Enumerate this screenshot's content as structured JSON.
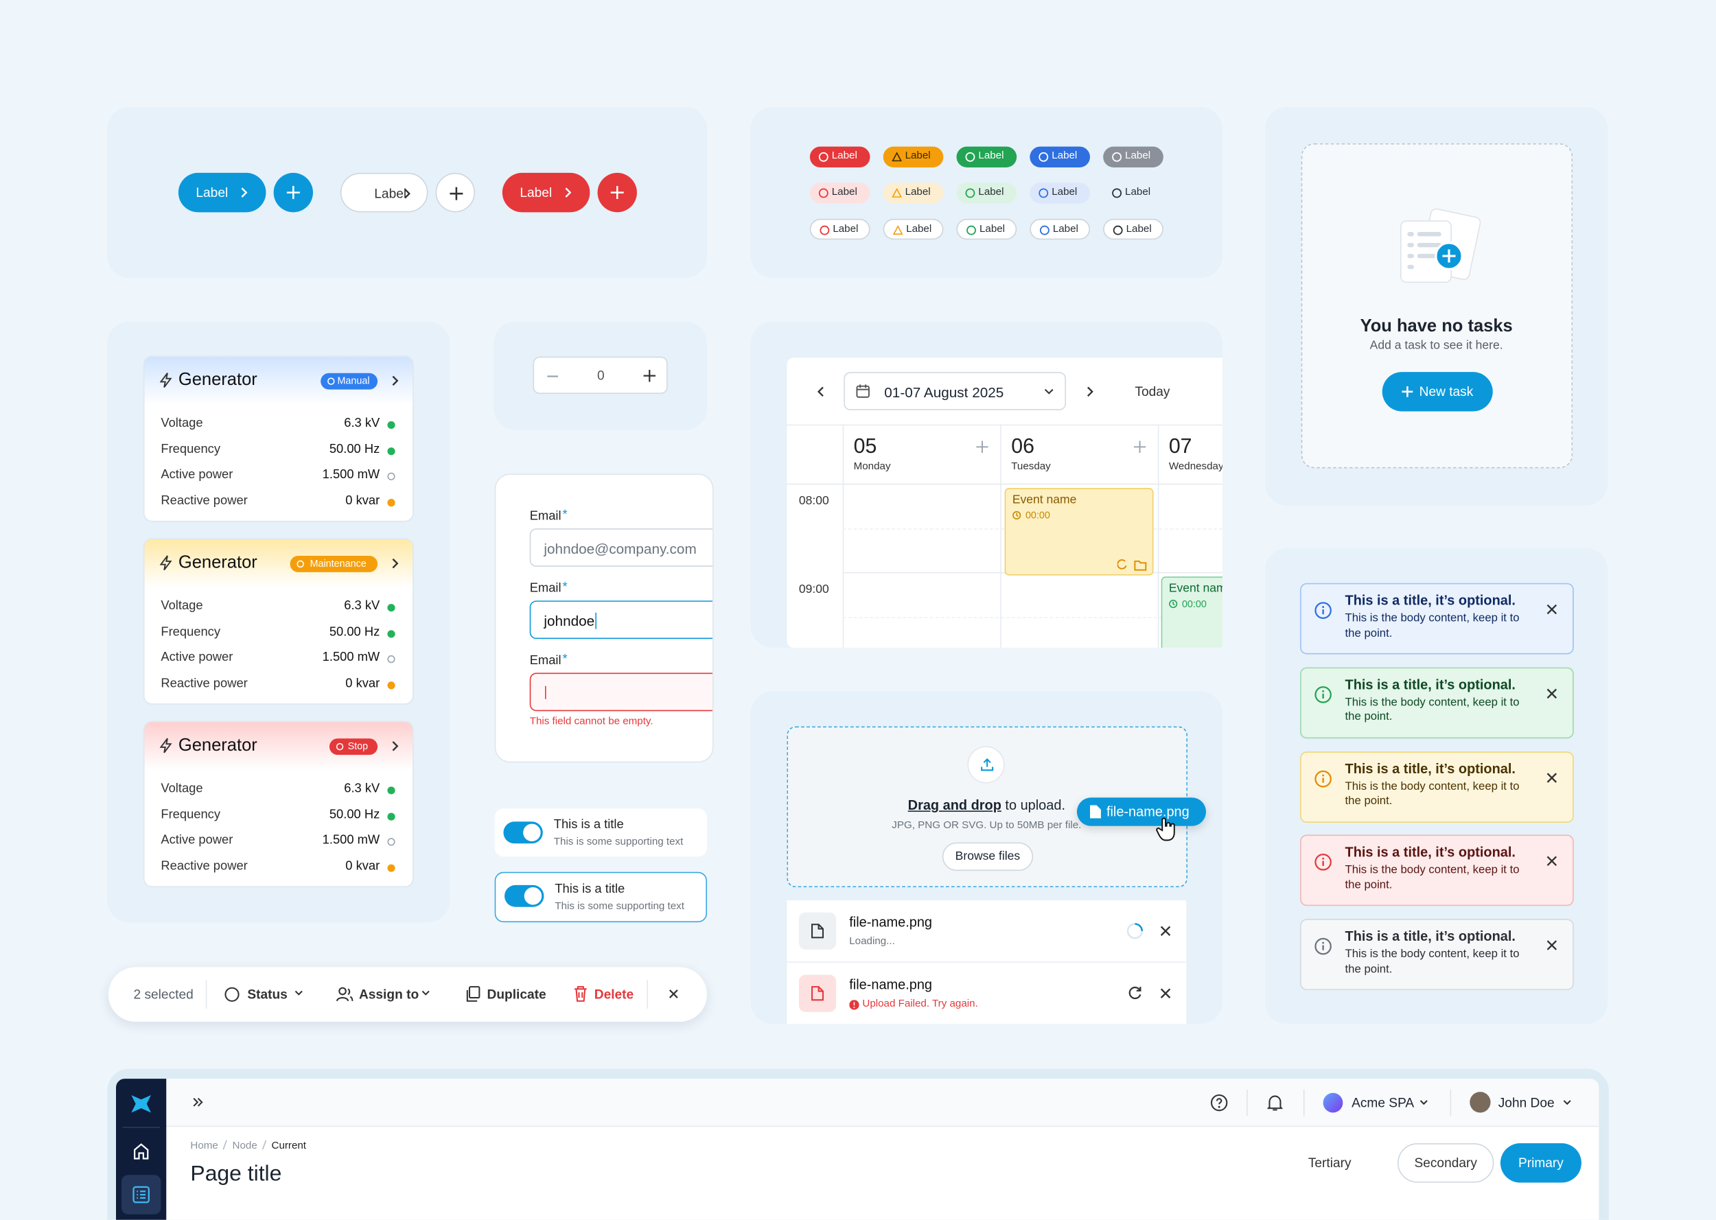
{
  "buttons": [
    "Label",
    "Label",
    "Label"
  ],
  "tags": [
    [
      "Label",
      "Label",
      "Label",
      "Label",
      "Label"
    ],
    [
      "Label",
      "Label",
      "Label",
      "Label",
      "Label"
    ],
    [
      "Label",
      "Label",
      "Label",
      "Label",
      "Label"
    ]
  ],
  "empty_state": {
    "title": "You have no tasks",
    "subtitle": "Add a task to see it here.",
    "button": "New task"
  },
  "generators": [
    {
      "title": "Generator",
      "badge": "Manual",
      "rows": [
        [
          "Voltage",
          "6.3 kV"
        ],
        [
          "Frequency",
          "50.00 Hz"
        ],
        [
          "Active power",
          "1.500 mW"
        ],
        [
          "Reactive power",
          "0 kvar"
        ]
      ]
    },
    {
      "title": "Generator",
      "badge": "Maintenance",
      "rows": [
        [
          "Voltage",
          "6.3 kV"
        ],
        [
          "Frequency",
          "50.00 Hz"
        ],
        [
          "Active power",
          "1.500 mW"
        ],
        [
          "Reactive power",
          "0 kvar"
        ]
      ]
    },
    {
      "title": "Generator",
      "badge": "Stop",
      "rows": [
        [
          "Voltage",
          "6.3 kV"
        ],
        [
          "Frequency",
          "50.00 Hz"
        ],
        [
          "Active power",
          "1.500 mW"
        ],
        [
          "Reactive power",
          "0 kvar"
        ]
      ]
    }
  ],
  "stepper": {
    "value": 0
  },
  "form": {
    "fields": [
      {
        "label": "Email",
        "required": "*",
        "placeholder": "johndoe@company.com"
      },
      {
        "label": "Email",
        "required": "*",
        "value": "johndoe"
      },
      {
        "label": "Email",
        "required": "*",
        "error": "This field cannot be empty."
      }
    ]
  },
  "toggles": [
    {
      "title": "This is a title",
      "text": "This is some supporting text"
    },
    {
      "title": "This is a title",
      "text": "This is some supporting text"
    }
  ],
  "action_bar": {
    "selected": "2 selected",
    "status": "Status",
    "assign": "Assign to",
    "duplicate": "Duplicate",
    "delete": "Delete"
  },
  "calendar": {
    "range": "01-07 August 2025",
    "today": "Today",
    "days": [
      {
        "date": "05",
        "weekday": "Monday"
      },
      {
        "date": "06",
        "weekday": "Tuesday"
      },
      {
        "date": "07",
        "weekday": "Wednesday"
      }
    ],
    "times": [
      "08:00",
      "09:00"
    ],
    "events": [
      {
        "name": "Event name",
        "time": "00:00"
      },
      {
        "name": "Event name",
        "time": "00:00"
      }
    ]
  },
  "upload": {
    "prompt_link": "Drag and drop",
    "prompt_rest": "to upload.",
    "hint": "JPG, PNG OR SVG. Up to 50MB per file.",
    "browse": "Browse files",
    "dragging": "file-name.png",
    "files": [
      {
        "name": "file-name.png",
        "status": "Loading..."
      },
      {
        "name": "file-name.png",
        "status": "Upload Failed. Try again."
      }
    ]
  },
  "alerts": [
    {
      "title": "This is a title, it’s optional.",
      "body": "This is the body content, keep it to the point."
    },
    {
      "title": "This is a title, it’s optional.",
      "body": "This is the body content, keep it to the point."
    },
    {
      "title": "This is a title, it’s optional.",
      "body": "This is the body content, keep it to the point."
    },
    {
      "title": "This is a title, it’s optional.",
      "body": "This is the body content, keep it to the point."
    },
    {
      "title": "This is a title, it’s optional.",
      "body": "This is the body content, keep it to the point."
    }
  ],
  "app_shell": {
    "org": "Acme SPA",
    "user": "John Doe",
    "breadcrumb": [
      "Home",
      "Node",
      "Current"
    ],
    "page_title": "Page title",
    "actions": [
      "Tertiary",
      "Secondary",
      "Primary"
    ]
  }
}
